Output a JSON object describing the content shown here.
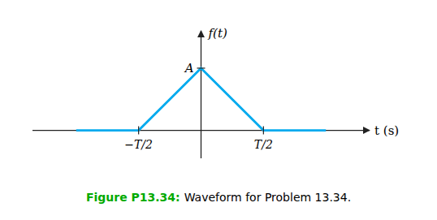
{
  "chart_data": {
    "type": "line",
    "x": [
      -1,
      -0.5,
      0,
      0.5,
      1
    ],
    "values": [
      0,
      0,
      1,
      0,
      0
    ],
    "color": "#00AAEE",
    "x_label": "t (s)",
    "y_label": "f(t)",
    "xlim": [
      -1.35,
      1.35
    ],
    "ylim": [
      -0.45,
      1.6
    ],
    "xticks": [
      {
        "value": -0.5,
        "label": "−T/2"
      },
      {
        "value": 0.5,
        "label": "T/2"
      }
    ],
    "yticks": [
      {
        "value": 1.0,
        "label": "A"
      }
    ],
    "grid": false,
    "annotations": [
      {
        "text": "Figure P13.34:",
        "color": "#00AA00"
      },
      {
        "text": "Waveform for Problem 13.34.",
        "color": "black"
      }
    ]
  }
}
